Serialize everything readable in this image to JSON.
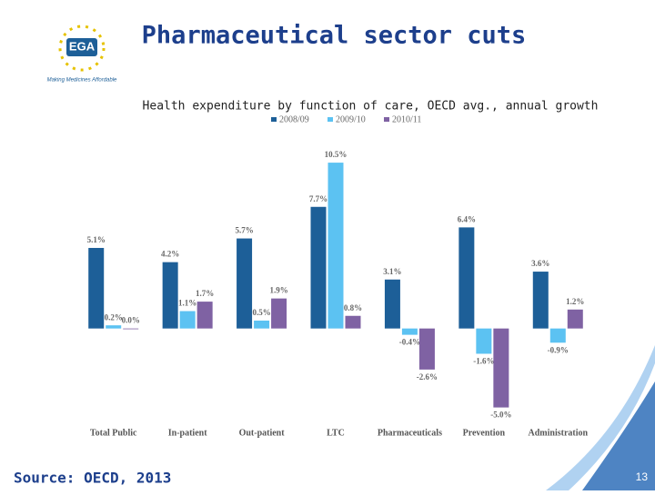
{
  "header": {
    "logo": "EGA",
    "tagline": "Making Medicines Affordable",
    "title": "Pharmaceutical sector cuts"
  },
  "chart_data": {
    "type": "bar",
    "title": "Health expenditure by function of care, OECD avg., annual growth",
    "categories": [
      "Total Public",
      "In-patient",
      "Out-patient",
      "LTC",
      "Pharmaceuticals",
      "Prevention",
      "Administration"
    ],
    "series": [
      {
        "name": "2008/09",
        "color": "#1d5f98",
        "values": [
          5.1,
          4.2,
          5.7,
          7.7,
          3.1,
          6.4,
          3.6
        ],
        "value_labels": [
          "5.1%",
          "4.2%",
          "5.7%",
          "7.7%",
          "3.1%",
          "6.4%",
          "3.6%"
        ]
      },
      {
        "name": "2009/10",
        "color": "#5cc2f2",
        "values": [
          0.2,
          1.1,
          0.5,
          10.5,
          -0.4,
          -1.6,
          -0.9
        ],
        "value_labels": [
          "0.2%",
          "1.1%",
          "0.5%",
          "10.5%",
          "-0.4%",
          "-1.6%",
          "-0.9%"
        ]
      },
      {
        "name": "2010/11",
        "color": "#7f62a3",
        "values": [
          0.0,
          1.7,
          1.9,
          0.8,
          -2.6,
          -5.0,
          1.2
        ],
        "value_labels": [
          "0.0%",
          "1.7%",
          "1.9%",
          "0.8%",
          "-2.6%",
          "-5.0%",
          "1.2%"
        ]
      }
    ],
    "ylim": [
      -6,
      12
    ],
    "legend": "top"
  },
  "footer": {
    "source": "Source: OECD, 2013",
    "page": "13"
  }
}
